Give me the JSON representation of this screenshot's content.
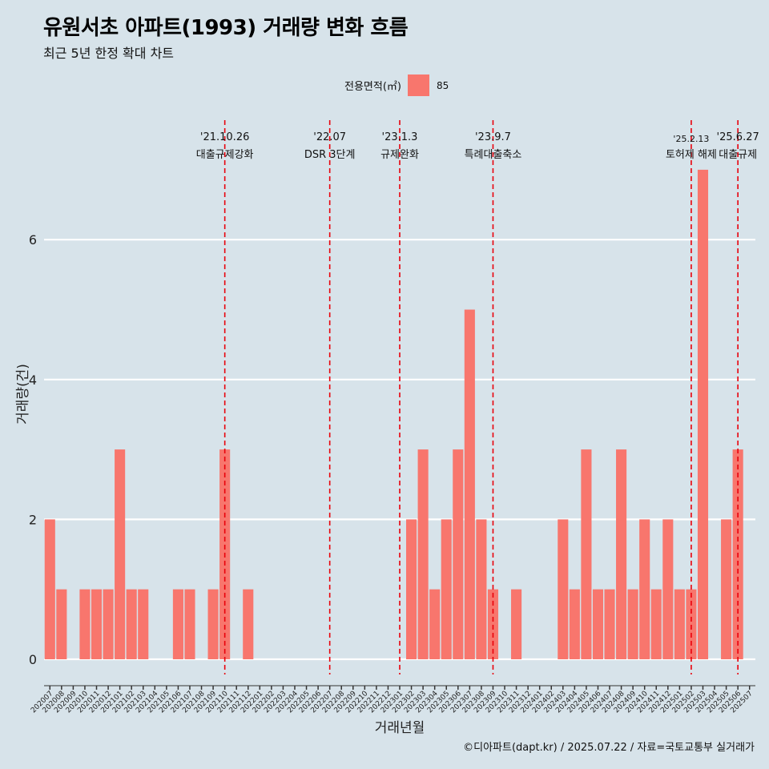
{
  "header": {
    "title": "유원서초 아파트(1993) 거래량 변화 흐름",
    "subtitle": "최근 5년 한정 확대 차트"
  },
  "legend": {
    "title": "전용면적(㎡)",
    "entries": [
      {
        "label": "85",
        "color": "#f8766d"
      }
    ]
  },
  "caption": "©디아파트(dapt.kr) / 2025.07.22 / 자료=국토교통부 실거래가",
  "colors": {
    "bar": "#f8766d",
    "background": "#d7e3ea",
    "grid": "#ffffff",
    "event_line": "#e8000b"
  },
  "chart_data": {
    "type": "bar",
    "xlabel": "거래년월",
    "ylabel": "거래량(건)",
    "ylim": [
      0,
      7
    ],
    "yticks": [
      0,
      2,
      4,
      6
    ],
    "grid": "horizontal",
    "legend_position": "top",
    "categories": [
      "202007",
      "202008",
      "202009",
      "202010",
      "202011",
      "202012",
      "202101",
      "202102",
      "202103",
      "202104",
      "202105",
      "202106",
      "202107",
      "202108",
      "202109",
      "202110",
      "202111",
      "202112",
      "202201",
      "202202",
      "202203",
      "202204",
      "202205",
      "202206",
      "202207",
      "202208",
      "202209",
      "202210",
      "202211",
      "202212",
      "202301",
      "202302",
      "202303",
      "202304",
      "202305",
      "202306",
      "202307",
      "202308",
      "202309",
      "202310",
      "202311",
      "202312",
      "202401",
      "202402",
      "202403",
      "202404",
      "202405",
      "202406",
      "202407",
      "202408",
      "202409",
      "202410",
      "202411",
      "202412",
      "202501",
      "202502",
      "202503",
      "202504",
      "202505",
      "202506",
      "202507"
    ],
    "series": [
      {
        "name": "85",
        "values": [
          2,
          1,
          0,
          1,
          1,
          1,
          3,
          1,
          1,
          0,
          0,
          1,
          1,
          0,
          1,
          3,
          0,
          1,
          0,
          0,
          0,
          0,
          0,
          0,
          0,
          0,
          0,
          0,
          0,
          0,
          0,
          2,
          3,
          1,
          2,
          3,
          5,
          2,
          1,
          0,
          1,
          0,
          0,
          0,
          2,
          1,
          3,
          1,
          1,
          3,
          1,
          2,
          1,
          2,
          1,
          1,
          7,
          0,
          2,
          3,
          0
        ]
      }
    ],
    "events": [
      {
        "x": "202110",
        "date": "'21.10.26",
        "label": "대출규제강화"
      },
      {
        "x": "202207",
        "date": "'22.07",
        "label": "DSR 3단계"
      },
      {
        "x": "202301",
        "date": "'23.1.3",
        "label": "규제완화"
      },
      {
        "x": "202309",
        "date": "'23.9.7",
        "label": "특례대출축소"
      },
      {
        "x": "202502",
        "date": "'25.2.13",
        "label": "토허제 해제"
      },
      {
        "x": "202506",
        "date": "'25.6.27",
        "label": "대출규제"
      }
    ]
  }
}
